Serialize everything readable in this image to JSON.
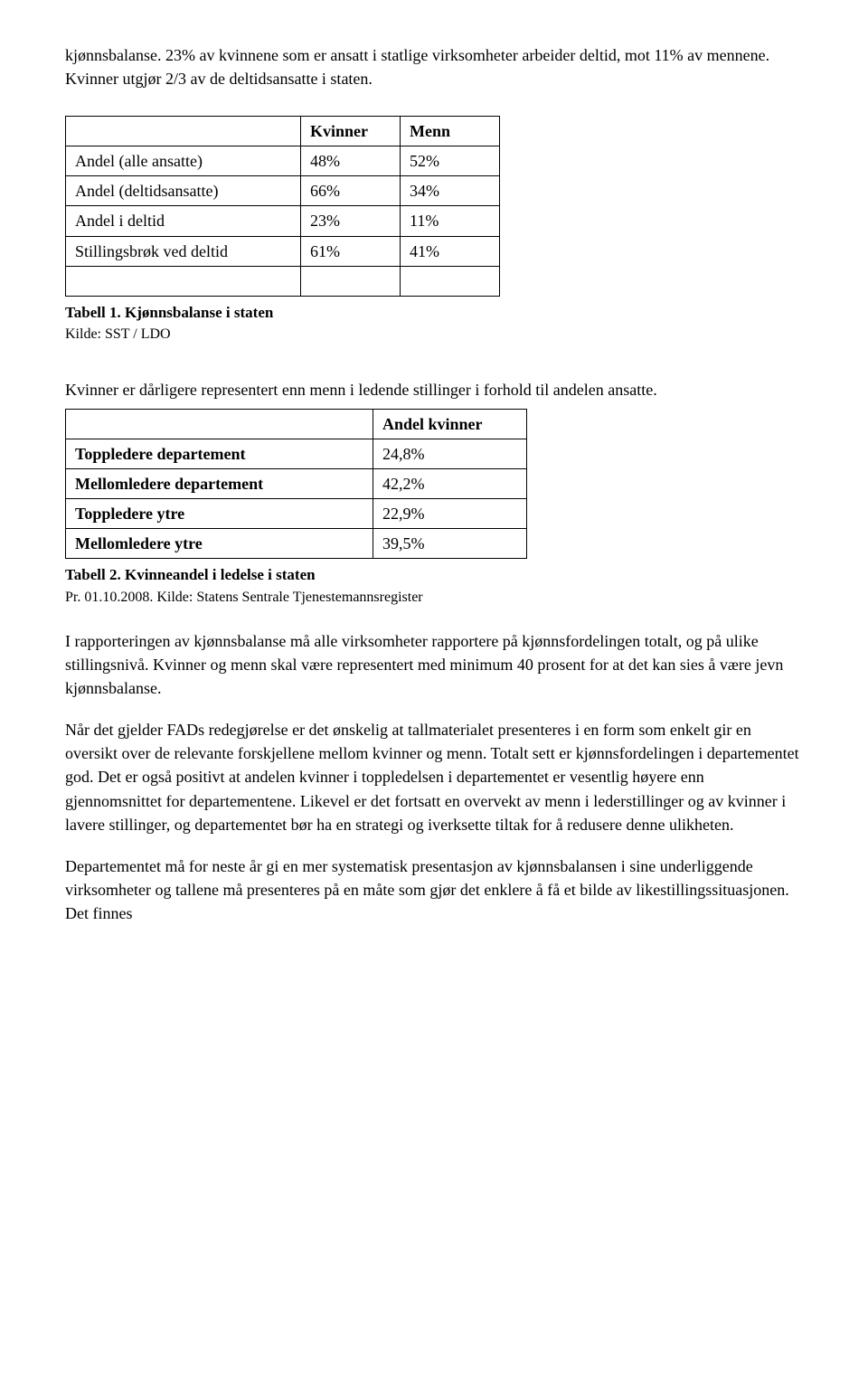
{
  "intro_para": "kjønnsbalanse. 23% av kvinnene som er ansatt i statlige virksomheter arbeider deltid, mot 11% av mennene. Kvinner utgjør 2/3 av de deltidsansatte i staten.",
  "table1": {
    "headers": [
      "",
      "Kvinner",
      "Menn"
    ],
    "rows": [
      [
        "Andel (alle ansatte)",
        "48%",
        "52%"
      ],
      [
        "Andel (deltidsansatte)",
        "66%",
        "34%"
      ],
      [
        "Andel i deltid",
        "23%",
        "11%"
      ],
      [
        "Stillingsbrøk ved deltid",
        "61%",
        "41%"
      ],
      [
        "",
        "",
        ""
      ]
    ],
    "caption": "Tabell 1. Kjønnsbalanse i staten",
    "source": "Kilde: SST / LDO"
  },
  "mid_para": "Kvinner er dårligere representert enn menn i ledende stillinger i forhold til andelen ansatte.",
  "table2": {
    "headers": [
      "",
      "Andel kvinner"
    ],
    "rows": [
      [
        "Toppledere departement",
        "24,8%"
      ],
      [
        "Mellomledere departement",
        "42,2%"
      ],
      [
        "Toppledere ytre",
        "22,9%"
      ],
      [
        "Mellomledere ytre",
        "39,5%"
      ]
    ],
    "caption": "Tabell 2. Kvinneandel i ledelse i staten",
    "source": "Pr. 01.10.2008. Kilde: Statens Sentrale Tjenestemannsregister"
  },
  "para3": "I rapporteringen av kjønnsbalanse må alle virksomheter rapportere på kjønnsfordelingen totalt, og på ulike stillingsnivå. Kvinner og menn skal være representert med minimum 40 prosent for at det kan sies å være jevn kjønnsbalanse.",
  "para4": "Når det gjelder FADs redegjørelse er det ønskelig at tallmaterialet presenteres i en form som enkelt gir en oversikt over de relevante forskjellene mellom kvinner og menn. Totalt sett er kjønnsfordelingen i departementet god. Det er også positivt at andelen kvinner i toppledelsen i departementet er vesentlig høyere enn gjennomsnittet for departementene. Likevel er det fortsatt en overvekt av menn i lederstillinger og av kvinner i lavere stillinger, og departementet bør ha en strategi og iverksette tiltak for å redusere denne ulikheten.",
  "para5": "Departementet må for neste år gi en mer systematisk presentasjon av kjønnsbalansen i sine underliggende virksomheter og tallene må presenteres på en måte som gjør det enklere å få et bilde av likestillingssituasjonen. Det finnes"
}
